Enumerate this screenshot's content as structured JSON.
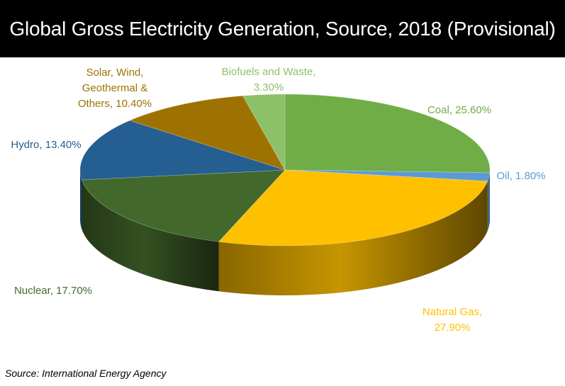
{
  "title": "Global Gross Electricity Generation, Source, 2018 (Provisional)",
  "source": "Source: International Energy Agency",
  "chart_data": {
    "type": "pie",
    "style": "3d",
    "title": "Global Gross Electricity Generation, Source, 2018 (Provisional)",
    "slices": [
      {
        "name": "Coal",
        "value": 25.6,
        "color": "#70ad47",
        "label_color": "#70ad47",
        "label": [
          "Coal, 25.60%"
        ]
      },
      {
        "name": "Oil",
        "value": 1.8,
        "color": "#5b9bd5",
        "label_color": "#5b9bd5",
        "label": [
          "Oil, 1.80%"
        ]
      },
      {
        "name": "Natural Gas",
        "value": 27.9,
        "color": "#ffc000",
        "label_color": "#ffc000",
        "label": [
          "Natural Gas,",
          "27.90%"
        ]
      },
      {
        "name": "Nuclear",
        "value": 17.7,
        "color": "#43682b",
        "label_color": "#43682b",
        "label": [
          "Nuclear, 17.70%"
        ]
      },
      {
        "name": "Hydro",
        "value": 13.4,
        "color": "#255e91",
        "label_color": "#255e91",
        "label": [
          "Hydro, 13.40%"
        ]
      },
      {
        "name": "Solar, Wind, Geothermal & Others",
        "value": 10.4,
        "color": "#9e7200",
        "label_color": "#9e7200",
        "label": [
          "Solar, Wind,",
          "Geothermal &",
          "Others, 10.40%"
        ]
      },
      {
        "name": "Biofuels and Waste",
        "value": 3.3,
        "color": "#8cc169",
        "label_color": "#8cc169",
        "label": [
          "Biofuels and Waste,",
          "3.30%"
        ]
      }
    ],
    "legend": "none",
    "start": "top",
    "direction": "clockwise"
  }
}
